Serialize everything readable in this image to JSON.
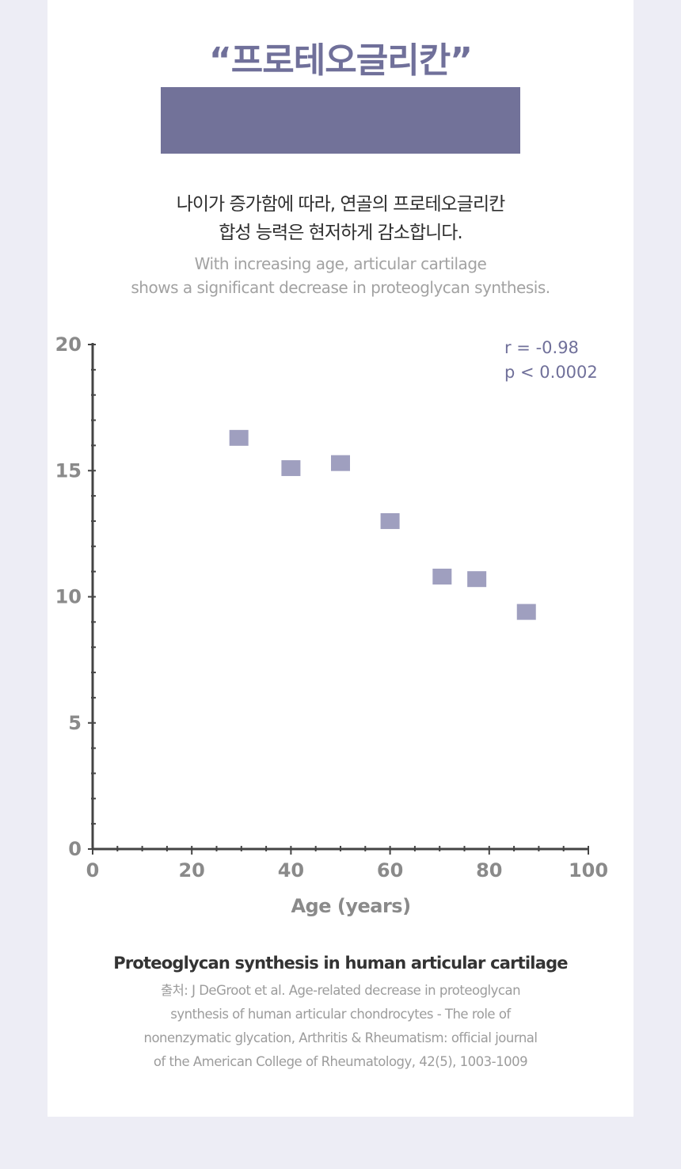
{
  "header": {
    "title": "“프로테오글리칸”",
    "subtitle_ko_line1": "나이가 증가함에 따라, 연골의 프로테오글리칸",
    "subtitle_ko_line2": "합성 능력은 현저하게 감소합니다.",
    "subtitle_en_line1": "With increasing age, articular cartilage",
    "subtitle_en_line2": "shows a significant decrease in proteoglycan synthesis."
  },
  "colors": {
    "accent": "#727299",
    "marker": "#9f9fbf",
    "axis": "#444444",
    "tick_label": "#8a8a8a",
    "stat_text": "#70709a",
    "page_background": "#ededf5"
  },
  "chart_data": {
    "type": "scatter",
    "title": "",
    "xlabel": "Age (years)",
    "ylabel": "",
    "xlim": [
      0,
      100
    ],
    "ylim": [
      0,
      20
    ],
    "x_ticks": [
      "0",
      "20",
      "40",
      "60",
      "80",
      "100"
    ],
    "y_ticks": [
      "0",
      "5",
      "10",
      "15",
      "20"
    ],
    "grid": false,
    "points": [
      {
        "x": 29.5,
        "y": 16.3
      },
      {
        "x": 40,
        "y": 15.1
      },
      {
        "x": 50,
        "y": 15.3
      },
      {
        "x": 60,
        "y": 13.0
      },
      {
        "x": 70.5,
        "y": 10.8
      },
      {
        "x": 77.5,
        "y": 10.7
      },
      {
        "x": 87.5,
        "y": 9.4
      }
    ],
    "annotations": [
      "r = -0.98",
      "p < 0.0002"
    ]
  },
  "caption": {
    "title": "Proteoglycan synthesis in human articular cartilage",
    "source_line1": "출처: J DeGroot et al. Age-related decrease in proteoglycan",
    "source_line2": "synthesis of human articular chondrocytes - The role of",
    "source_line3": "nonenzymatic glycation, Arthritis & Rheumatism: official journal",
    "source_line4": "of the American College of Rheumatology, 42(5), 1003-1009"
  }
}
